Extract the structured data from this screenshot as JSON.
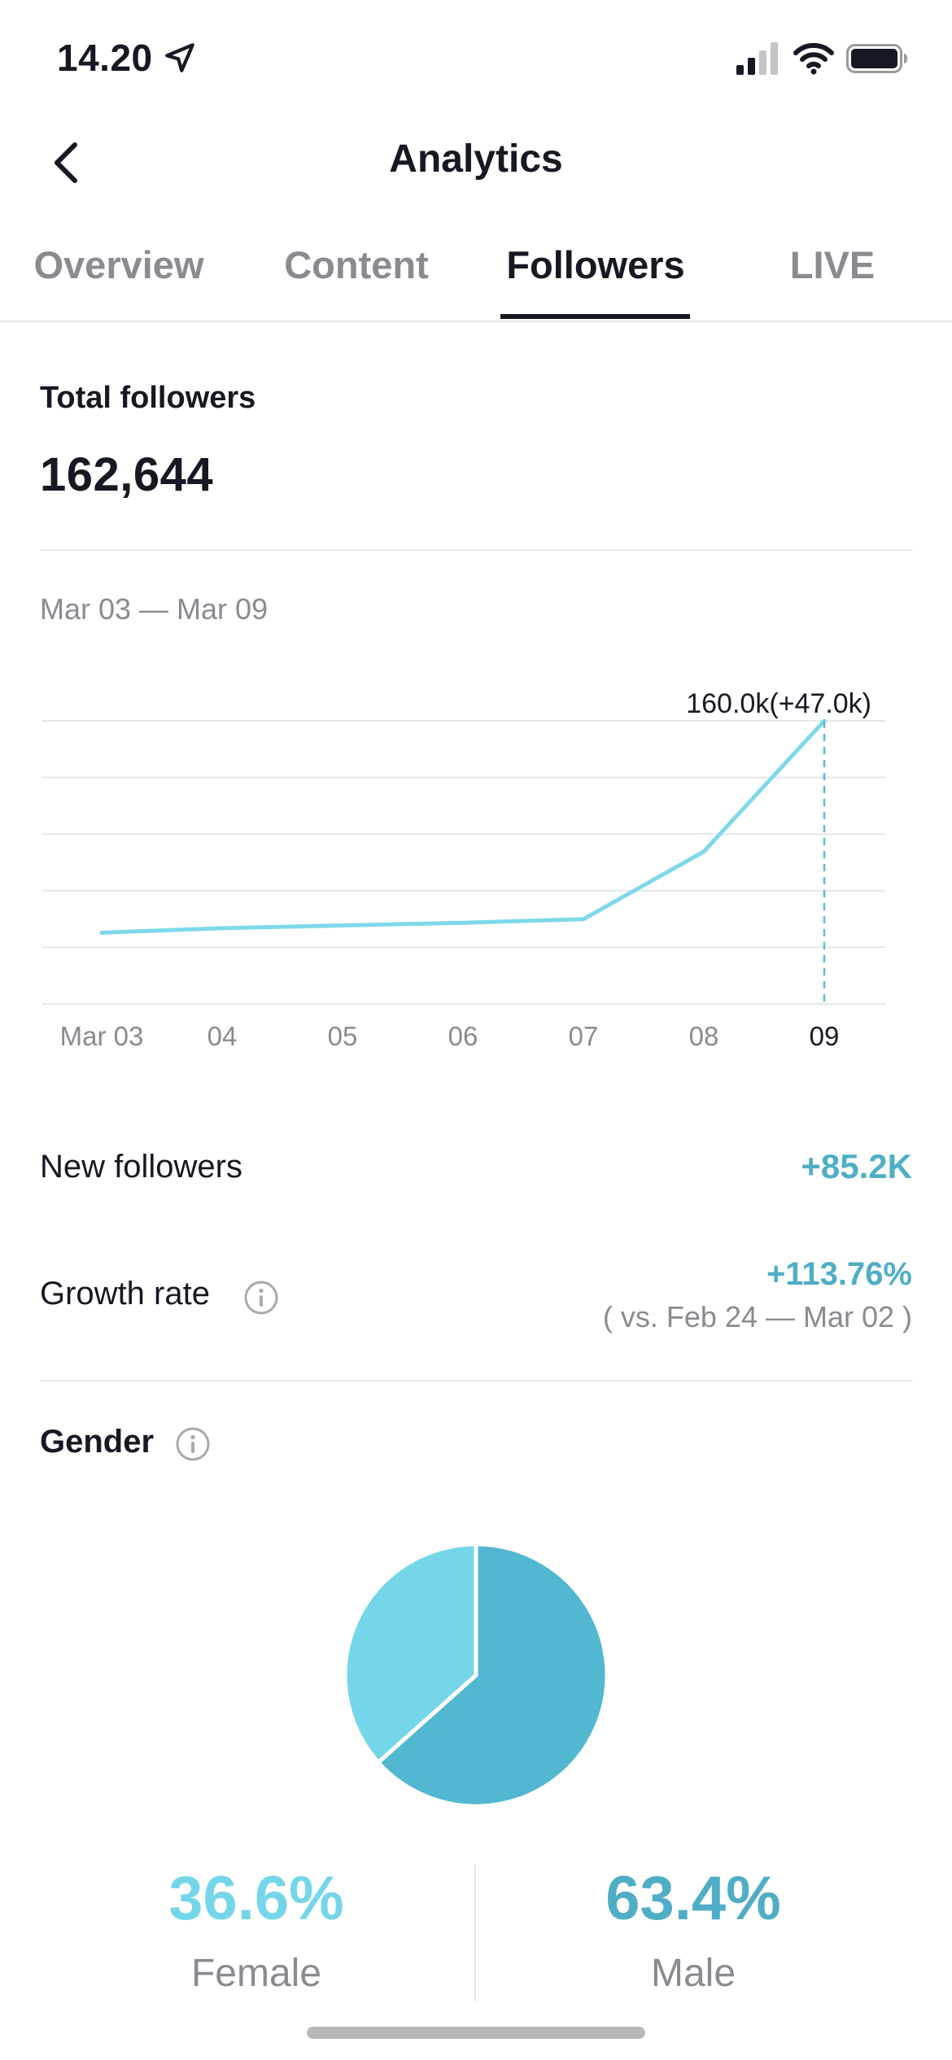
{
  "status_bar": {
    "time": "14.20",
    "icons": [
      "location-arrow-icon",
      "cellular-signal-icon",
      "wifi-icon",
      "battery-icon"
    ]
  },
  "header": {
    "title": "Analytics",
    "back_icon": "chevron-left-icon"
  },
  "tabs": [
    {
      "label": "Overview",
      "active": false
    },
    {
      "label": "Content",
      "active": false
    },
    {
      "label": "Followers",
      "active": true
    },
    {
      "label": "LIVE",
      "active": false
    }
  ],
  "followers": {
    "total_label": "Total followers",
    "total_value": "162,644",
    "date_range": "Mar 03 — Mar 09"
  },
  "chart_data": {
    "type": "line",
    "x": [
      "Mar 03",
      "04",
      "05",
      "06",
      "07",
      "08",
      "09"
    ],
    "series": [
      {
        "values": [
          113.0,
          114.0,
          114.6,
          115.2,
          116.0,
          131.0,
          160.0
        ]
      }
    ],
    "annotation": {
      "x": "09",
      "text": "160.0k(+47.0k)"
    },
    "ylim": [
      110,
      160
    ],
    "grid": true,
    "color": "#7fd8ea"
  },
  "stats": {
    "new_followers_label": "New followers",
    "new_followers_value": "+85.2K",
    "growth_rate_label": "Growth rate",
    "growth_rate_value": "+113.76%",
    "growth_rate_compare": "( vs. Feb 24 — Mar 02 )"
  },
  "gender": {
    "label": "Gender",
    "female_pct": "36.6%",
    "female_label": "Female",
    "male_pct": "63.4%",
    "male_label": "Male",
    "female_value": 36.6,
    "male_value": 63.4,
    "female_color": "#75d6e9",
    "male_color": "#52b7d0"
  }
}
